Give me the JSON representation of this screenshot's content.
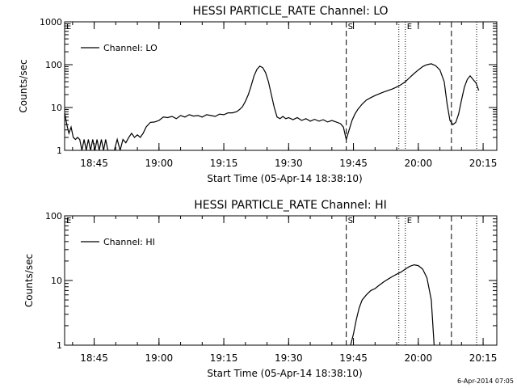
{
  "footer_timestamp": "6-Apr-2014 07:05",
  "chart_data": [
    {
      "type": "line",
      "title": "HESSI PARTICLE_RATE Channel: LO",
      "xlabel": "Start Time (05-Apr-14 18:38:10)",
      "ylabel": "Counts/sec",
      "y_scale": "log",
      "xlim": [
        "18:38:10",
        "20:18:10"
      ],
      "ylim": [
        1,
        1000
      ],
      "x_ticks": [
        "18:45",
        "19:00",
        "19:15",
        "19:30",
        "19:45",
        "20:00",
        "20:15"
      ],
      "y_ticks": [
        "1",
        "10",
        "100",
        "1000"
      ],
      "legend": {
        "placement": "top-left",
        "entries": [
          "Channel: LO"
        ]
      },
      "markers": [
        {
          "time": "19:55:30",
          "label": "",
          "style": "dotted"
        },
        {
          "time": "19:43:20",
          "label": "S",
          "style": "dashed"
        },
        {
          "time": "19:57:00",
          "label": "E",
          "style": "dotted"
        },
        {
          "time": "20:07:40",
          "label": "",
          "style": "dashed"
        },
        {
          "time": "20:13:30",
          "label": "",
          "style": "dotted"
        }
      ],
      "top_left_letter": "E",
      "series": [
        {
          "x": [
            "18:38:10",
            "18:38:40",
            "18:39:10",
            "18:39:40",
            "18:40:10",
            "18:40:40",
            "18:41:10",
            "18:41:40",
            "18:42:10",
            "18:42:40",
            "18:43:10",
            "18:43:40",
            "18:44:10",
            "18:44:40",
            "18:45:10",
            "18:45:40",
            "18:46:10",
            "18:46:40",
            "18:47:10",
            "18:47:40",
            "18:48:10",
            "18:49:40",
            "18:50:20",
            "18:51:00",
            "18:51:40",
            "18:52:20",
            "18:53:00",
            "18:53:40",
            "18:54:20",
            "18:55:00",
            "18:55:40",
            "18:56:20",
            "18:57:00",
            "18:58:00",
            "18:59:00",
            "19:00:00",
            "19:01:00",
            "19:02:00",
            "19:03:00",
            "19:04:00",
            "19:05:00",
            "19:06:00",
            "19:07:00",
            "19:08:00",
            "19:09:00",
            "19:10:00",
            "19:11:00",
            "19:12:00",
            "19:13:00",
            "19:14:00",
            "19:15:00",
            "19:16:00",
            "19:17:00",
            "19:18:00",
            "19:18:40",
            "19:19:20",
            "19:20:00",
            "19:20:40",
            "19:21:20",
            "19:22:00",
            "19:22:40",
            "19:23:20",
            "19:24:00",
            "19:24:40",
            "19:25:20",
            "19:26:00",
            "19:26:40",
            "19:27:20",
            "19:28:00",
            "19:28:40",
            "19:29:20",
            "19:30:00",
            "19:31:00",
            "19:32:00",
            "19:33:00",
            "19:34:00",
            "19:35:00",
            "19:36:00",
            "19:37:00",
            "19:38:00",
            "19:39:00",
            "19:40:00",
            "19:41:00",
            "19:42:00",
            "19:42:40",
            "19:43:20",
            "19:44:00",
            "19:44:40",
            "19:45:20",
            "19:46:00",
            "19:47:00",
            "19:48:00",
            "19:49:00",
            "19:50:00",
            "19:51:00",
            "19:52:00",
            "19:53:00",
            "19:54:00",
            "19:55:00",
            "19:56:00",
            "19:57:00",
            "19:58:00",
            "19:59:00",
            "20:00:00",
            "20:01:00",
            "20:02:00",
            "20:03:00",
            "20:04:00",
            "20:05:00",
            "20:06:00",
            "20:06:40",
            "20:07:20",
            "20:08:00",
            "20:08:40",
            "20:09:20",
            "20:10:00",
            "20:10:40",
            "20:11:20",
            "20:12:00",
            "20:12:40",
            "20:13:20",
            "20:14:00"
          ],
          "y": [
            7.5,
            4.0,
            2.5,
            3.5,
            2.0,
            1.8,
            2.0,
            1.8,
            1.0,
            1.8,
            1.0,
            1.8,
            1.0,
            1.8,
            1.0,
            1.8,
            1.0,
            1.8,
            1.0,
            1.8,
            1.0,
            1.0,
            1.8,
            1.0,
            1.8,
            1.5,
            2.0,
            2.5,
            2.0,
            2.3,
            2.0,
            2.5,
            3.5,
            4.5,
            4.6,
            5.0,
            6.0,
            5.8,
            6.2,
            5.5,
            6.5,
            6.0,
            6.8,
            6.3,
            6.5,
            6.0,
            6.8,
            6.5,
            6.2,
            7.0,
            6.8,
            7.5,
            7.5,
            8.0,
            9.0,
            10.5,
            14.0,
            20.0,
            32.0,
            55.0,
            78.0,
            92.0,
            85.0,
            65.0,
            40.0,
            20.0,
            10.0,
            6.0,
            5.5,
            6.2,
            5.5,
            5.8,
            5.2,
            5.8,
            5.0,
            5.5,
            4.8,
            5.3,
            4.8,
            5.2,
            4.6,
            5.0,
            4.6,
            4.2,
            3.5,
            1.8,
            3.0,
            5.0,
            7.0,
            9.0,
            12.0,
            15.0,
            17.0,
            19.0,
            21.0,
            23.0,
            25.0,
            27.0,
            30.0,
            34.0,
            40.0,
            50.0,
            62.0,
            75.0,
            90.0,
            100.0,
            105.0,
            95.0,
            75.0,
            40.0,
            12.0,
            5.0,
            4.0,
            4.5,
            7.0,
            15.0,
            30.0,
            45.0,
            55.0,
            45.0,
            38.0,
            25.0
          ]
        }
      ]
    },
    {
      "type": "line",
      "title": "HESSI PARTICLE_RATE Channel: HI",
      "xlabel": "Start Time (05-Apr-14 18:38:10)",
      "ylabel": "Counts/sec",
      "y_scale": "log",
      "xlim": [
        "18:38:10",
        "20:18:10"
      ],
      "ylim": [
        1,
        100
      ],
      "x_ticks": [
        "18:45",
        "19:00",
        "19:15",
        "19:30",
        "19:45",
        "20:00",
        "20:15"
      ],
      "y_ticks": [
        "1",
        "10",
        "100"
      ],
      "legend": {
        "placement": "top-left",
        "entries": [
          "Channel: HI"
        ]
      },
      "markers": [
        {
          "time": "19:55:30",
          "label": "",
          "style": "dotted"
        },
        {
          "time": "19:43:20",
          "label": "S",
          "style": "dashed"
        },
        {
          "time": "19:57:00",
          "label": "E",
          "style": "dotted"
        },
        {
          "time": "20:07:40",
          "label": "",
          "style": "dashed"
        },
        {
          "time": "20:13:30",
          "label": "",
          "style": "dotted"
        }
      ],
      "top_left_letter": "E",
      "series": [
        {
          "x": [
            "19:44:20",
            "19:45:00",
            "19:45:40",
            "19:46:20",
            "19:47:00",
            "19:48:00",
            "19:49:00",
            "19:50:00",
            "19:51:00",
            "19:52:00",
            "19:53:00",
            "19:54:00",
            "19:55:00",
            "19:56:00",
            "19:57:00",
            "19:58:00",
            "19:59:00",
            "20:00:00",
            "20:01:00",
            "20:02:00",
            "20:03:00",
            "20:03:40"
          ],
          "y": [
            1.0,
            1.5,
            2.5,
            3.8,
            5.0,
            6.0,
            7.0,
            7.5,
            8.5,
            9.5,
            10.5,
            11.5,
            12.5,
            13.5,
            15.0,
            16.5,
            17.5,
            17.0,
            15.0,
            11.0,
            5.0,
            1.0
          ]
        }
      ]
    }
  ]
}
